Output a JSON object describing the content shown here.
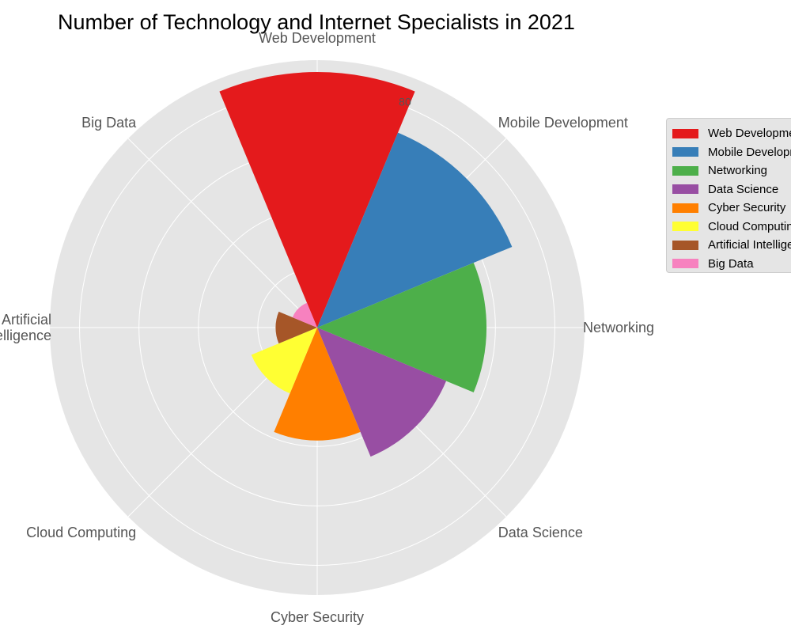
{
  "chart_data": {
    "type": "polar-bar",
    "title": "Number of Technology and Internet Specialists in 2021",
    "categories": [
      "Web Development",
      "Mobile Development",
      "Networking",
      "Data Science",
      "Cyber Security",
      "Cloud Computing",
      "Artificial Intelligence",
      "Big Data"
    ],
    "category_labels": [
      "Web Development",
      "Mobile Development",
      "Networking",
      "Data Science",
      "Cyber Security",
      "Cloud Computing",
      "Artificial\nIntelligence",
      "Big Data"
    ],
    "values": [
      86,
      71,
      57,
      47,
      38,
      24,
      14,
      9
    ],
    "colors": [
      "#e41a1c",
      "#377eb8",
      "#4daf4a",
      "#984ea3",
      "#ff7f00",
      "#ffff33",
      "#a65628",
      "#f781bf"
    ],
    "rlim": [
      0,
      90
    ],
    "r_ticks": [
      20,
      40,
      60,
      80
    ],
    "r_tick_labels": [
      "",
      "",
      "",
      "80"
    ],
    "grid": true,
    "legend_position": "outside-right"
  }
}
